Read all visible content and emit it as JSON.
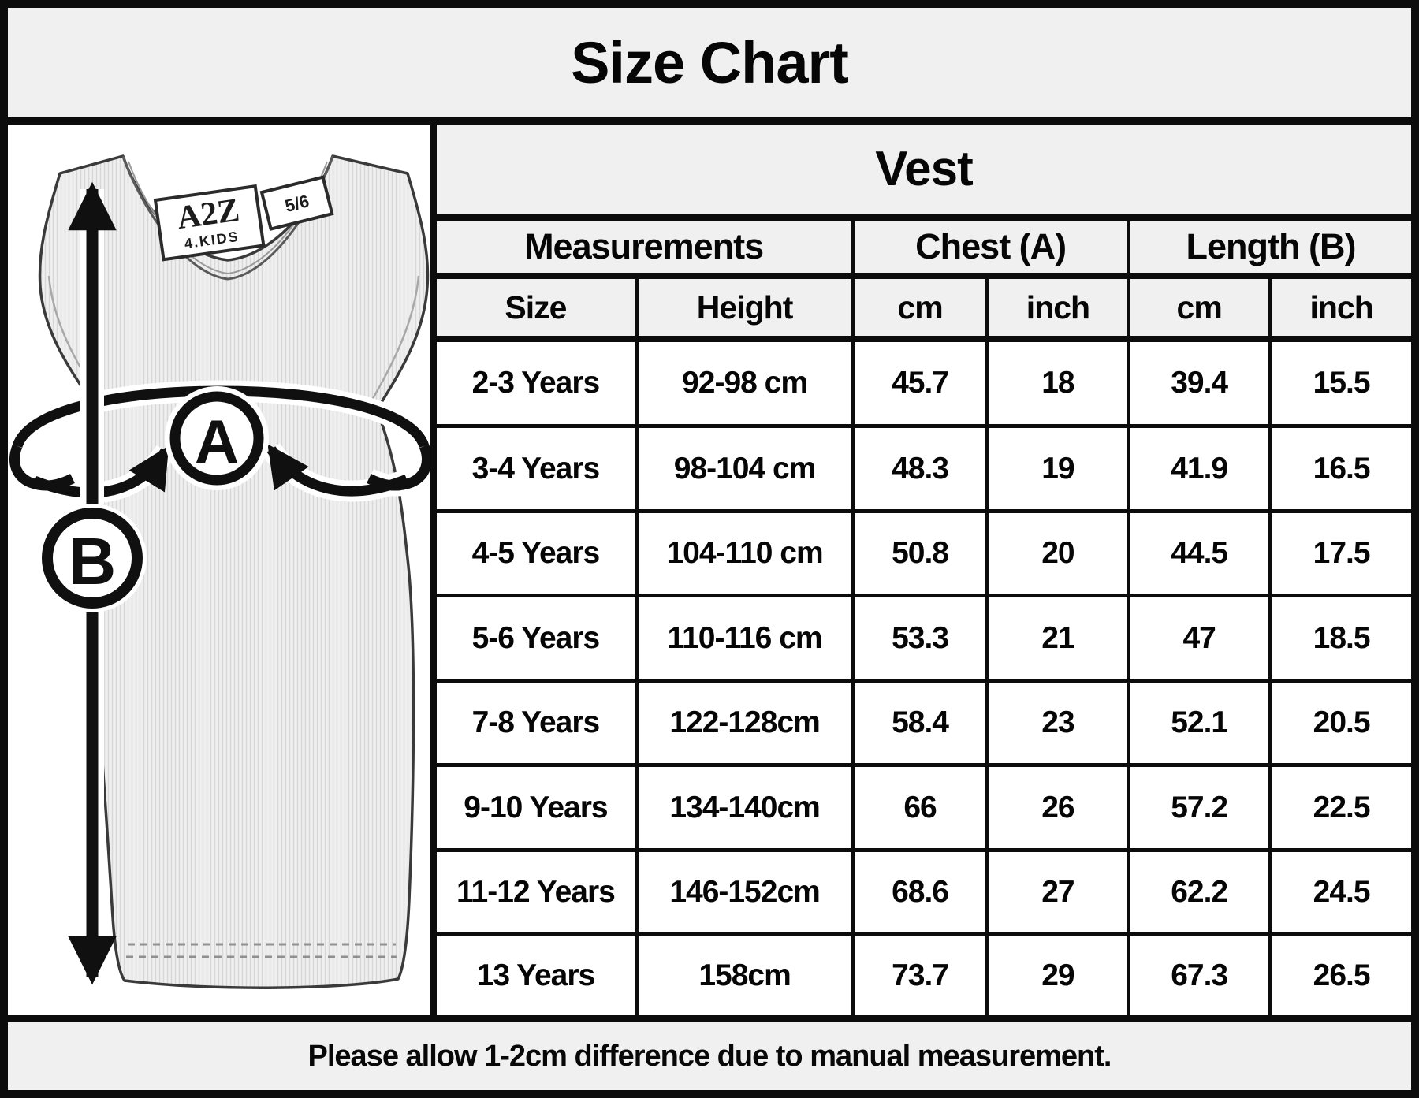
{
  "title": "Size Chart",
  "chart_data": {
    "type": "table",
    "title": "Size Chart",
    "product": "Vest",
    "group_headers": [
      "Measurements",
      "Chest (A)",
      "Length (B)"
    ],
    "columns": [
      "Size",
      "Height",
      "cm",
      "inch",
      "cm",
      "inch"
    ],
    "rows": [
      [
        "2-3 Years",
        "92-98 cm",
        "45.7",
        "18",
        "39.4",
        "15.5"
      ],
      [
        "3-4 Years",
        "98-104 cm",
        "48.3",
        "19",
        "41.9",
        "16.5"
      ],
      [
        "4-5 Years",
        "104-110 cm",
        "50.8",
        "20",
        "44.5",
        "17.5"
      ],
      [
        "5-6 Years",
        "110-116 cm",
        "53.3",
        "21",
        "47",
        "18.5"
      ],
      [
        "7-8 Years",
        "122-128cm",
        "58.4",
        "23",
        "52.1",
        "20.5"
      ],
      [
        "9-10 Years",
        "134-140cm",
        "66",
        "26",
        "57.2",
        "22.5"
      ],
      [
        "11-12 Years",
        "146-152cm",
        "68.6",
        "27",
        "62.2",
        "24.5"
      ],
      [
        "13 Years",
        "158cm",
        "73.7",
        "29",
        "67.3",
        "26.5"
      ]
    ],
    "footnote": "Please allow 1-2cm difference due to manual measurement."
  },
  "diagram": {
    "chest_marker": "A",
    "length_marker": "B",
    "tag_brand": "A2Z",
    "tag_line": "4.KIDS",
    "tag_size": "5/6"
  },
  "colors": {
    "border": "#0c0c0c",
    "band_bg": "#f0f0f0",
    "page_bg": "#ffffff",
    "vest_fill": "#efefef"
  }
}
